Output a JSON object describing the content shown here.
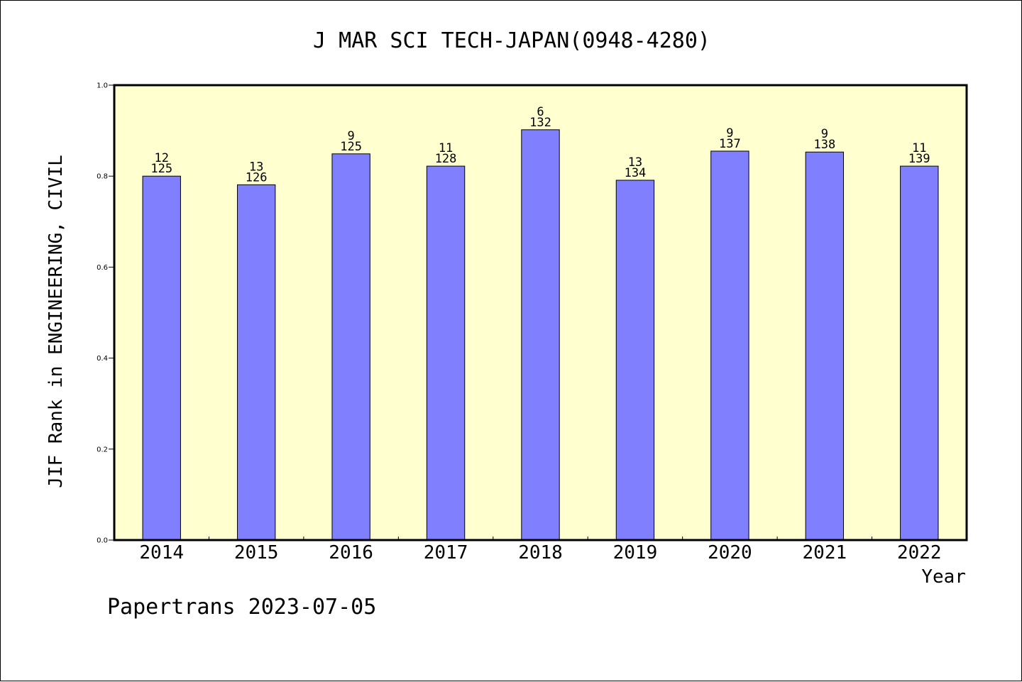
{
  "chart_data": {
    "type": "bar",
    "title": "J MAR SCI TECH-JAPAN(0948-4280)",
    "xlabel": "Year",
    "ylabel": "JIF Rank in ENGINEERING, CIVIL",
    "categories": [
      "2014",
      "2015",
      "2016",
      "2017",
      "2018",
      "2019",
      "2020",
      "2021",
      "2022"
    ],
    "values": [
      0.8,
      0.781,
      0.849,
      0.822,
      0.902,
      0.791,
      0.855,
      0.853,
      0.822
    ],
    "ranks": [
      "12",
      "13",
      "9",
      "11",
      "6",
      "13",
      "9",
      "9",
      "11"
    ],
    "totals": [
      "125",
      "126",
      "125",
      "128",
      "132",
      "134",
      "137",
      "138",
      "139"
    ],
    "ylim": [
      0,
      1.0
    ],
    "yticks": [
      "0.0",
      "0.2",
      "0.4",
      "0.6",
      "0.8",
      "1.0"
    ],
    "grid": false,
    "colors": {
      "bar_fill": "#8080ff",
      "plot_background": "#ffffd0",
      "axis": "#000000"
    }
  },
  "footer": {
    "text": "Papertrans 2023-07-05"
  }
}
